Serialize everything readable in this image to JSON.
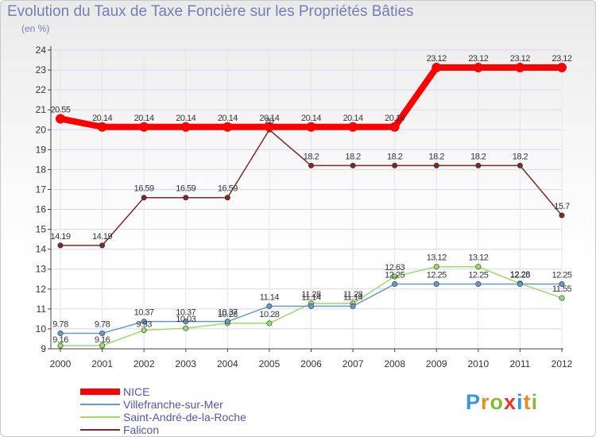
{
  "chart_data": {
    "type": "line",
    "title": "Evolution du Taux de Taxe Foncière sur les Propriétés Bâties",
    "ylabel": "(en %)",
    "xlabel": "",
    "x": [
      "2000",
      "2001",
      "2002",
      "2003",
      "2004",
      "2005",
      "2006",
      "2007",
      "2008",
      "2009",
      "2010",
      "2011",
      "2012"
    ],
    "yticks": [
      9,
      10,
      11,
      12,
      13,
      14,
      15,
      16,
      17,
      18,
      19,
      20,
      21,
      22,
      23,
      24
    ],
    "ylim": [
      9,
      24
    ],
    "series": [
      {
        "name": "NICE",
        "color": "#ff0000",
        "values": [
          20.55,
          20.14,
          20.14,
          20.14,
          20.14,
          20.14,
          20.14,
          20.14,
          20.14,
          23.12,
          23.12,
          23.12,
          23.12
        ],
        "labels": [
          "20.55",
          "20.14",
          "20.14",
          "20.14",
          "20.14",
          "20.14",
          "20.14",
          "20.14",
          "20.14",
          "23.12",
          "23.12",
          "23.12",
          "23.12"
        ]
      },
      {
        "name": "Villefranche-sur-Mer",
        "color": "#6699cc",
        "values": [
          9.78,
          9.78,
          10.37,
          10.37,
          10.37,
          11.14,
          11.14,
          11.14,
          12.25,
          12.25,
          12.25,
          12.25,
          12.25
        ],
        "labels": [
          "9.78",
          "9.78",
          "10.37",
          "10.37",
          "10.37",
          "11.14",
          "11.14",
          "11.14",
          "12.25",
          "12.25",
          "12.25",
          "12.25",
          "12.25"
        ]
      },
      {
        "name": "Saint-André-de-la-Roche",
        "color": "#99dd66",
        "values": [
          9.16,
          9.16,
          9.93,
          10.03,
          10.28,
          10.28,
          11.28,
          11.28,
          12.63,
          13.12,
          13.12,
          12.28,
          11.55
        ],
        "labels": [
          "9.16",
          "9.16",
          "9.93",
          "10.03",
          "10.28",
          "10.28",
          "11.28",
          "11.28",
          "12.63",
          "13.12",
          "13.12",
          "12.28",
          "11.55"
        ]
      },
      {
        "name": "Falicon",
        "color": "#7a2a2a",
        "values": [
          14.19,
          14.19,
          16.59,
          16.59,
          16.59,
          20,
          18.2,
          18.2,
          18.2,
          18.2,
          18.2,
          18.2,
          15.7
        ],
        "labels": [
          "14.19",
          "14.19",
          "16.59",
          "16.59",
          "16.59",
          "20",
          "18.2",
          "18.2",
          "18.2",
          "18.2",
          "18.2",
          "18.2",
          "15.7"
        ]
      }
    ]
  },
  "logo": {
    "letters": [
      "P",
      "r",
      "o",
      "x",
      "i",
      "t",
      "i"
    ],
    "colors": [
      "#3399dd",
      "#ee8822",
      "#88bb33",
      "#ee3322",
      "#3399dd",
      "#ee8822",
      "#88bb33"
    ]
  }
}
